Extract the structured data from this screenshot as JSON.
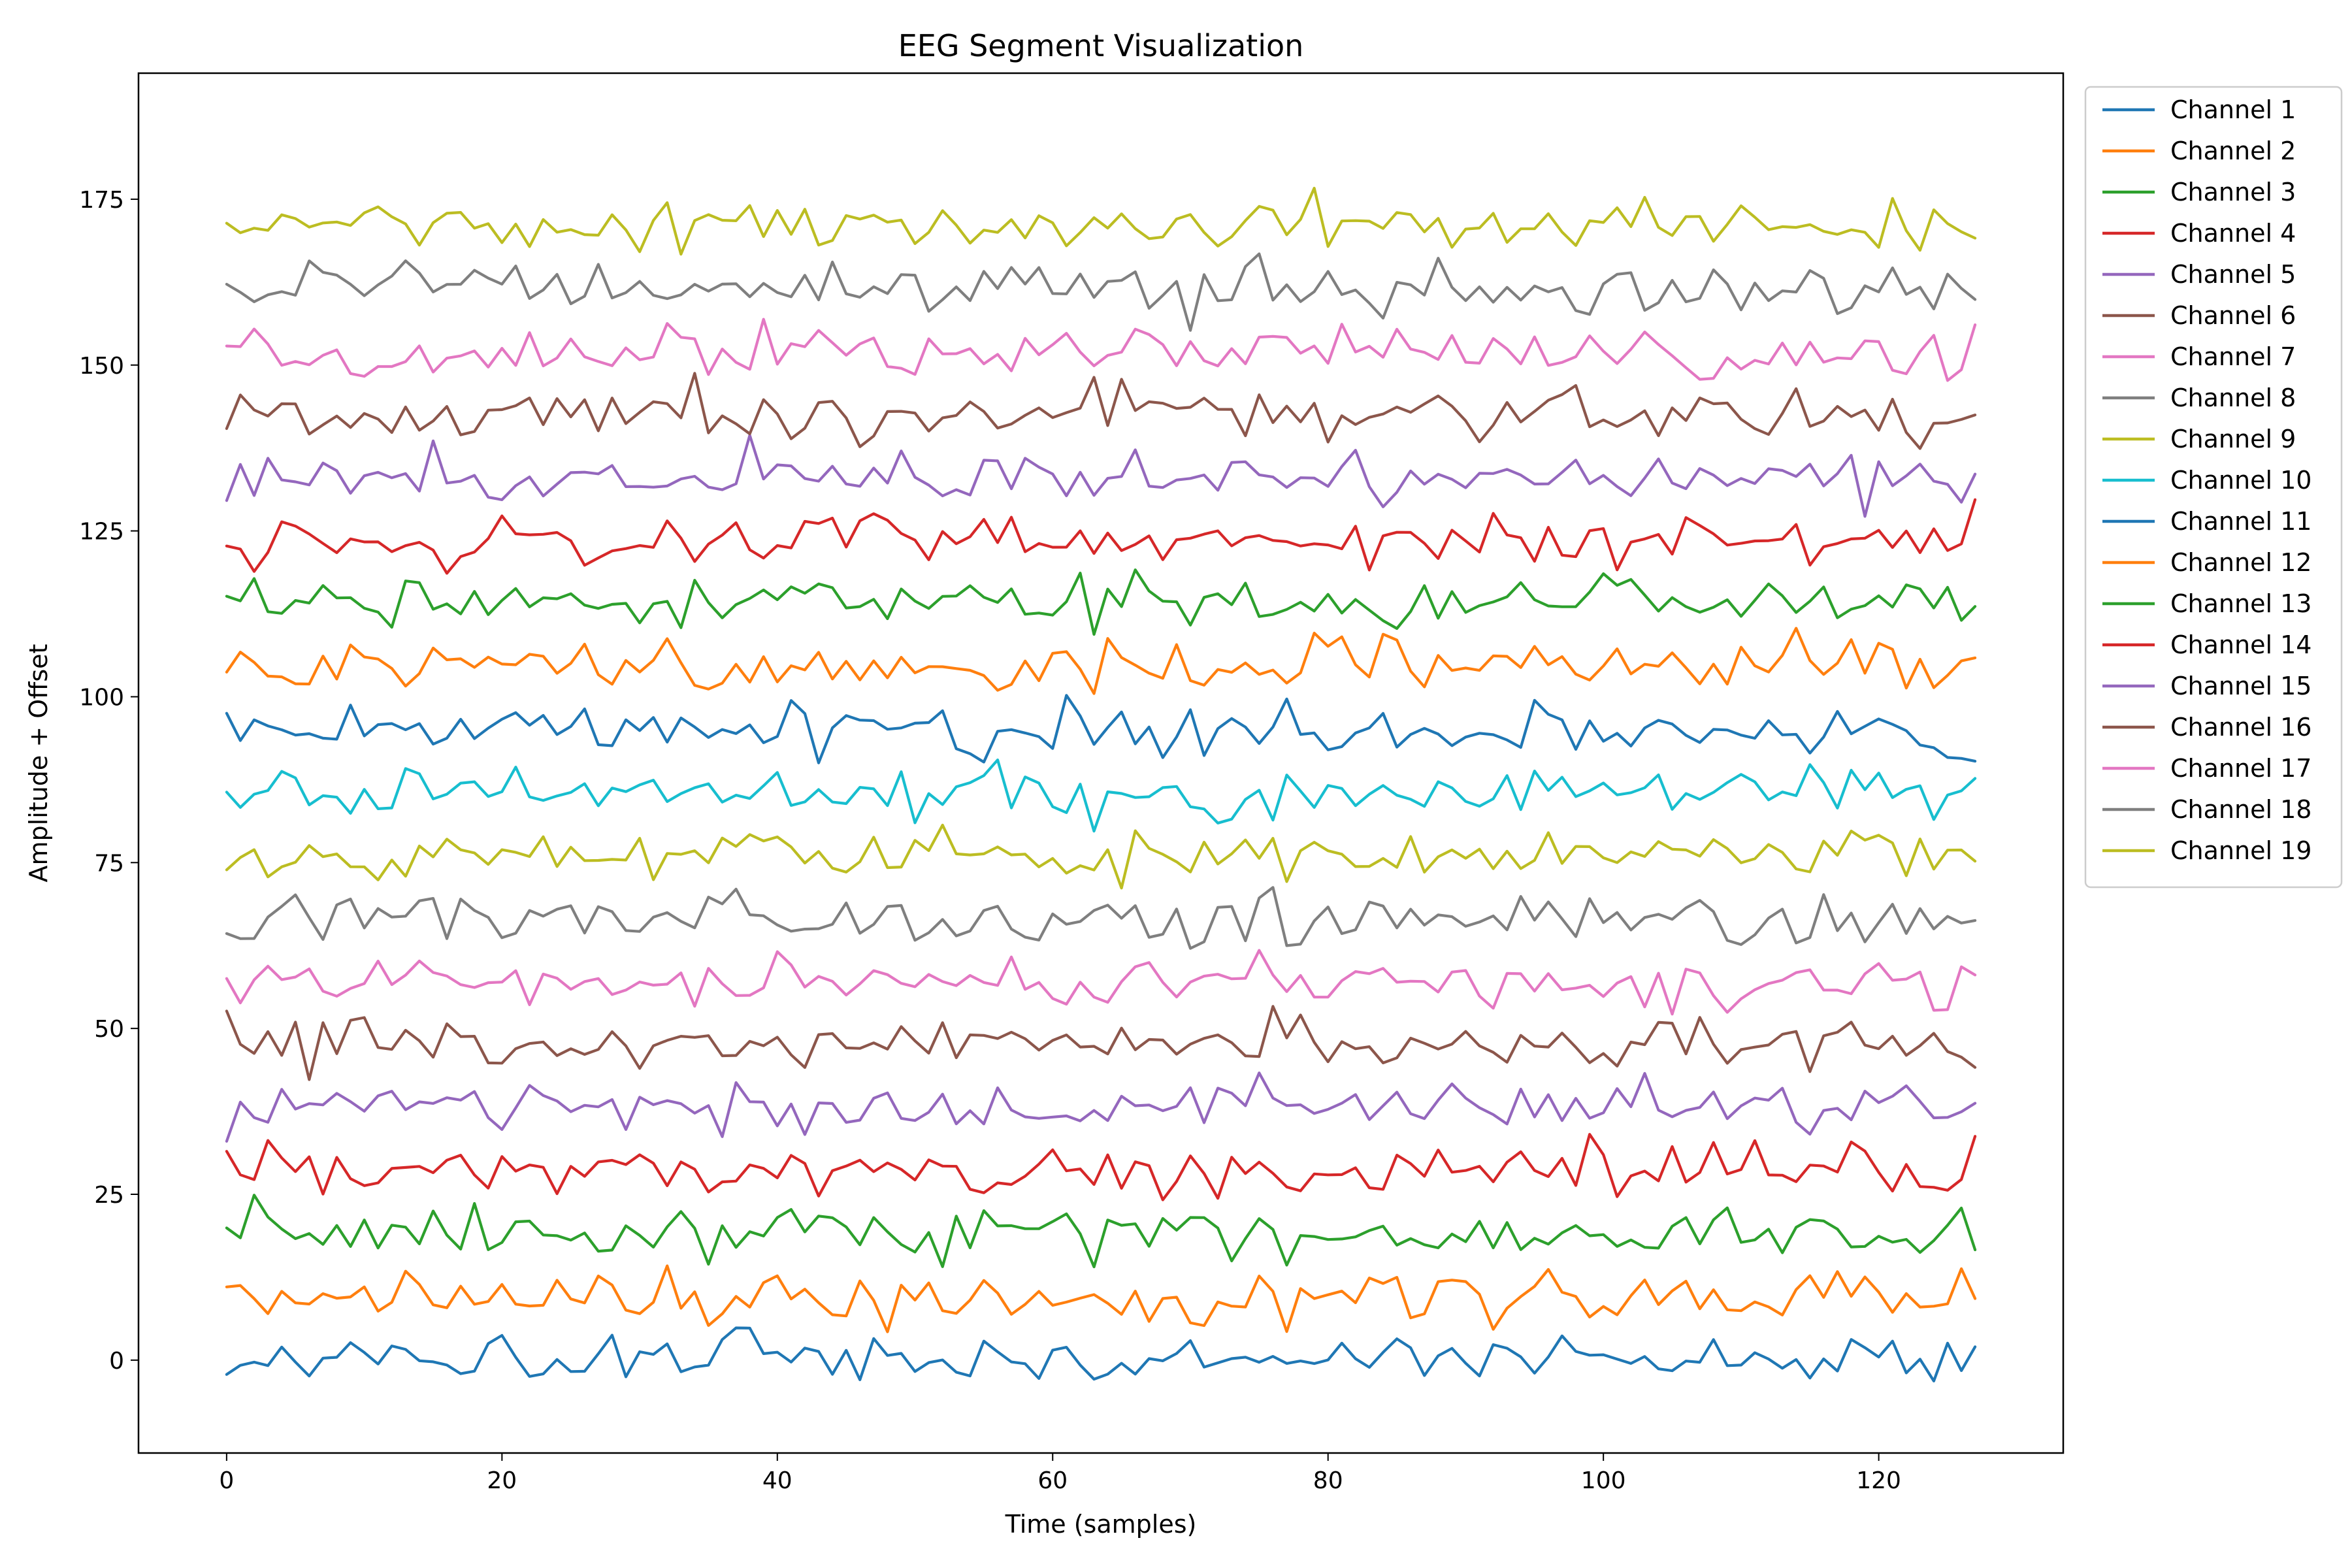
{
  "chart_data": {
    "type": "line",
    "title": "EEG Segment Visualization",
    "xlabel": "Time (samples)",
    "ylabel": "Amplitude + Offset",
    "xlim": [
      -6.4,
      133.4
    ],
    "ylim": [
      -14,
      194
    ],
    "x_ticks": [
      0,
      20,
      40,
      60,
      80,
      100,
      120
    ],
    "y_ticks": [
      0,
      25,
      50,
      75,
      100,
      125,
      150,
      175
    ],
    "n_samples": 128,
    "channel_spacing": 9.5,
    "noise_amplitude": 2.0,
    "grid": false,
    "legend_position": "outside-right-top",
    "series": [
      {
        "name": "Channel 1",
        "offset": 0,
        "color": "#1f77b4"
      },
      {
        "name": "Channel 2",
        "offset": 9.5,
        "color": "#ff7f0e"
      },
      {
        "name": "Channel 3",
        "offset": 19,
        "color": "#2ca02c"
      },
      {
        "name": "Channel 4",
        "offset": 28.5,
        "color": "#d62728"
      },
      {
        "name": "Channel 5",
        "offset": 38,
        "color": "#9467bd"
      },
      {
        "name": "Channel 6",
        "offset": 47.5,
        "color": "#8c564b"
      },
      {
        "name": "Channel 7",
        "offset": 57,
        "color": "#e377c2"
      },
      {
        "name": "Channel 8",
        "offset": 66.5,
        "color": "#7f7f7f"
      },
      {
        "name": "Channel 9",
        "offset": 76,
        "color": "#bcbd22"
      },
      {
        "name": "Channel 10",
        "offset": 85.5,
        "color": "#17becf"
      },
      {
        "name": "Channel 11",
        "offset": 95,
        "color": "#1f77b4"
      },
      {
        "name": "Channel 12",
        "offset": 104.5,
        "color": "#ff7f0e"
      },
      {
        "name": "Channel 13",
        "offset": 114,
        "color": "#2ca02c"
      },
      {
        "name": "Channel 14",
        "offset": 123.5,
        "color": "#d62728"
      },
      {
        "name": "Channel 15",
        "offset": 133,
        "color": "#9467bd"
      },
      {
        "name": "Channel 16",
        "offset": 142.5,
        "color": "#8c564b"
      },
      {
        "name": "Channel 17",
        "offset": 152,
        "color": "#e377c2"
      },
      {
        "name": "Channel 18",
        "offset": 161.5,
        "color": "#7f7f7f"
      },
      {
        "name": "Channel 19",
        "offset": 171,
        "color": "#bcbd22"
      }
    ]
  }
}
